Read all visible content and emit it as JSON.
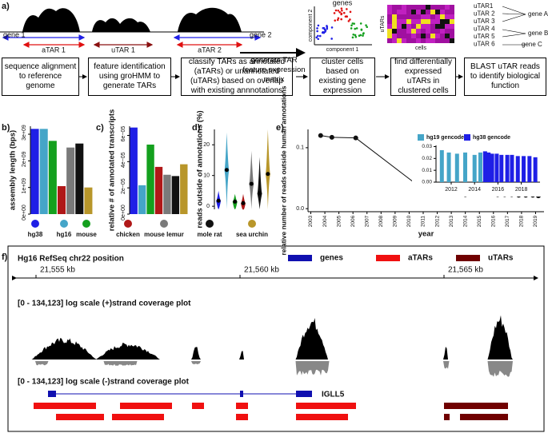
{
  "panel_labels": [
    "a)",
    "b)",
    "c)",
    "d)",
    "e)",
    "f)"
  ],
  "a": {
    "gene1": "gene 1",
    "gene2": "gene 2",
    "atar1": "aTAR 1",
    "utar1": "uTAR 1",
    "atar2": "aTAR 2",
    "steps": [
      "sequence alignment to reference genome",
      "feature identification using groHMM to generate TARs",
      "classify TARs as annotated (aTARs) or unannotated (uTARs) based on overlap with existing annnotations"
    ],
    "middle": "generate TAR feature expression matrix",
    "steps2": [
      "cluster cells based on existing gene expression",
      "find differentially expressed uTARs in clustered cells",
      "BLAST uTAR reads to identify biological function"
    ],
    "genes": "genes",
    "component1": "component 1",
    "component2": "component 2",
    "utars": "uTARs",
    "cells": "cells",
    "utar_list": [
      "uTAR1",
      "uTAR 2",
      "uTAR 3",
      "uTAR 4",
      "uTAR 5",
      "uTAR 6"
    ],
    "gene_a": "gene A",
    "gene_b": "gene B",
    "gene_c": "gene C"
  },
  "species": [
    "hg38",
    "hg16",
    "mouse",
    "chicken",
    "mouse lemur",
    "mole rat",
    "sea urchin"
  ],
  "chart_data": [
    {
      "type": "bar",
      "y_label": "assembly length (bps)",
      "values": [
        3200000000,
        3200000000,
        2750000000,
        1050000000,
        2500000000,
        2650000000,
        1000000000
      ],
      "colors": [
        "#1f1fe6",
        "#45a5c8",
        "#14a01e",
        "#b01818",
        "#7a7a7a",
        "#111111",
        "#b8962a"
      ],
      "ylim": [
        0,
        3300000000
      ],
      "yticks": [
        {
          "value": 0,
          "label": "0e+00"
        },
        {
          "value": 1000000000,
          "label": "1e+09"
        },
        {
          "value": 2000000000,
          "label": "2e+09"
        },
        {
          "value": 3000000000,
          "label": "3e+09"
        }
      ]
    },
    {
      "type": "bar",
      "y_label": "relative # of annotated transcripts",
      "values": [
        6.6e-05,
        2.2e-05,
        5.3e-05,
        3.6e-05,
        3e-05,
        2.9e-05,
        3.8e-05
      ],
      "colors": [
        "#1f1fe6",
        "#45a5c8",
        "#14a01e",
        "#b01818",
        "#7a7a7a",
        "#111111",
        "#b8962a"
      ],
      "ylim": [
        0,
        6.7e-05
      ],
      "yticks": [
        {
          "value": 0,
          "label": "0e+00"
        },
        {
          "value": 2e-05,
          "label": "2e−05"
        },
        {
          "value": 4e-05,
          "label": "4e−05"
        },
        {
          "value": 6e-05,
          "label": "6e−05"
        }
      ]
    },
    {
      "type": "violin",
      "y_label": "reads outside of annotations (%)",
      "values": [
        1.8,
        11.8,
        1.5,
        1.0,
        7.3,
        4.2,
        10.5
      ],
      "max": [
        5,
        24,
        4,
        4,
        18,
        16,
        25
      ],
      "colors": [
        "#1f1fe6",
        "#45a5c8",
        "#14a01e",
        "#b01818",
        "#7a7a7a",
        "#111111",
        "#b8962a"
      ],
      "ylim": [
        -1,
        25
      ],
      "yticks": [
        0,
        10,
        20
      ]
    },
    {
      "type": "line",
      "x_label": "year",
      "y_label": "relative number of reads outside human annotations",
      "x": [
        2003.7,
        2004.5,
        2006.2,
        2011.2,
        2011.8,
        2012.4,
        2013,
        2013.5,
        2014,
        2014.5,
        2014.8,
        2015,
        2015.3,
        2015.8,
        2016.3,
        2016.8,
        2017.3,
        2017.8,
        2018.3,
        2018.8,
        2019.2
      ],
      "values": [
        0.12,
        0.117,
        0.116,
        0.028,
        0.027,
        0.026,
        0.024,
        0.025,
        0.023,
        0.024,
        0.026,
        0.027,
        0.025,
        0.024,
        0.023,
        0.023,
        0.023,
        0.022,
        0.022,
        0.022,
        0.021
      ],
      "color": "#111111",
      "xlim": [
        2002.8,
        2019.6
      ],
      "xticks": [
        2003,
        2004,
        2005,
        2006,
        2007,
        2008,
        2009,
        2010,
        2011,
        2012,
        2013,
        2014,
        2015,
        2016,
        2017,
        2018,
        2019
      ],
      "ylim": [
        -0.005,
        0.13
      ],
      "yticks": [
        {
          "value": 0,
          "label": "0.0"
        },
        0.1
      ]
    },
    {
      "type": "bar",
      "series": [
        {
          "name": "hg19 gencode",
          "color": "#45a5c8",
          "x": [
            2011.2,
            2011.8,
            2012.5,
            2013.2,
            2014,
            2014.5
          ],
          "values": [
            0.027,
            0.025,
            0.024,
            0.025,
            0.023,
            0.025
          ]
        },
        {
          "name": "hg38 gencode",
          "color": "#1f1fe6",
          "x": [
            2014.9,
            2015.2,
            2015.5,
            2015.9,
            2016.3,
            2016.8,
            2017.2,
            2017.7,
            2018.2,
            2018.7,
            2019.2
          ],
          "values": [
            0.026,
            0.025,
            0.024,
            0.024,
            0.023,
            0.023,
            0.023,
            0.022,
            0.022,
            0.022,
            0.021
          ]
        }
      ],
      "xlim": [
        2010.7,
        2019.6
      ],
      "xticks": [
        2012,
        2014,
        2016,
        2018
      ],
      "ylim": [
        0,
        0.031
      ],
      "yticks": [
        {
          "value": 0,
          "label": "0.00"
        },
        0.01,
        0.02,
        0.03
      ]
    }
  ],
  "f": {
    "title": "Hg16 RefSeq chr22 position",
    "legend": [
      "genes",
      "aTARs",
      "uTARs"
    ],
    "kb": [
      "21,555 kb",
      "21,560 kb",
      "21,565 kb"
    ],
    "plus": "[0 - 134,123] log scale (+)strand coverage plot",
    "minus": "[0 - 134,123] log scale (-)strand coverage plot",
    "gene": "IGLL5"
  }
}
